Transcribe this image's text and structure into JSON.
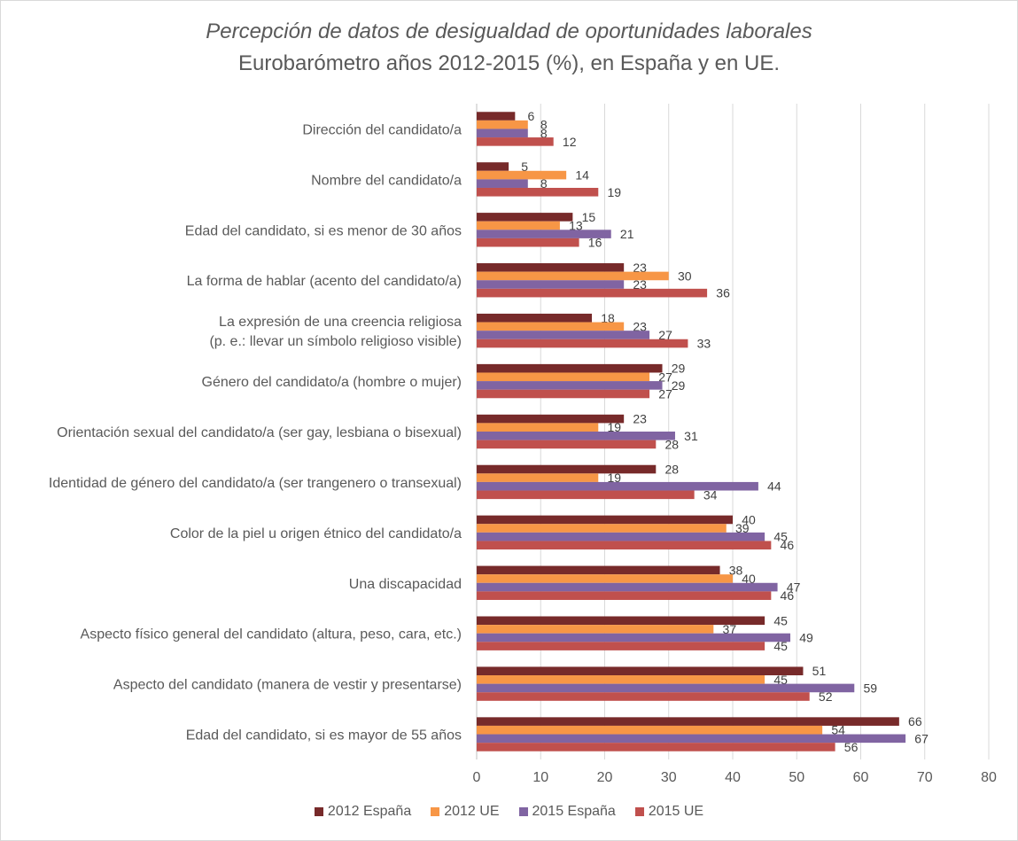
{
  "chart_data": {
    "type": "bar",
    "orientation": "horizontal",
    "title": "Percepción de datos de desigualdad de oportunidades laborales",
    "subtitle": "Eurobarómetro años 2012-2015 (%), en España y en UE.",
    "xlabel": "",
    "ylabel": "",
    "xlim": [
      0,
      80
    ],
    "xticks": [
      0,
      10,
      20,
      30,
      40,
      50,
      60,
      70,
      80
    ],
    "grid": true,
    "legend_position": "bottom",
    "categories": [
      [
        "Dirección del candidato/a"
      ],
      [
        "Nombre del candidato/a"
      ],
      [
        "Edad del candidato, si es menor de 30 años"
      ],
      [
        "La forma de hablar (acento del candidato/a)"
      ],
      [
        "La expresión de una creencia religiosa",
        "(p. e.: llevar un símbolo religioso visible)"
      ],
      [
        "Género del candidato/a (hombre o mujer)"
      ],
      [
        "Orientación sexual del candidato/a (ser gay, lesbiana o bisexual)"
      ],
      [
        "Identidad de género del candidato/a (ser trangenero o transexual)"
      ],
      [
        "Color de la piel u origen étnico del candidato/a"
      ],
      [
        "Una discapacidad"
      ],
      [
        "Aspecto físico general del candidato (altura, peso, cara, etc.)"
      ],
      [
        "Aspecto del candidato (manera de vestir y presentarse)"
      ],
      [
        "Edad del candidato, si es mayor de 55 años"
      ]
    ],
    "series": [
      {
        "name": "2012 España",
        "color": "#772a2a",
        "values": [
          6,
          5,
          15,
          23,
          18,
          29,
          23,
          28,
          40,
          38,
          45,
          51,
          66
        ]
      },
      {
        "name": "2012 UE",
        "color": "#f79646",
        "values": [
          8,
          14,
          13,
          30,
          23,
          27,
          19,
          19,
          39,
          40,
          37,
          45,
          54
        ]
      },
      {
        "name": "2015 España",
        "color": "#8064a2",
        "values": [
          8,
          8,
          21,
          23,
          27,
          29,
          31,
          44,
          45,
          47,
          49,
          59,
          67
        ]
      },
      {
        "name": "2015 UE",
        "color": "#c0504d",
        "values": [
          12,
          19,
          16,
          36,
          33,
          27,
          28,
          34,
          46,
          46,
          45,
          52,
          56
        ]
      }
    ]
  }
}
